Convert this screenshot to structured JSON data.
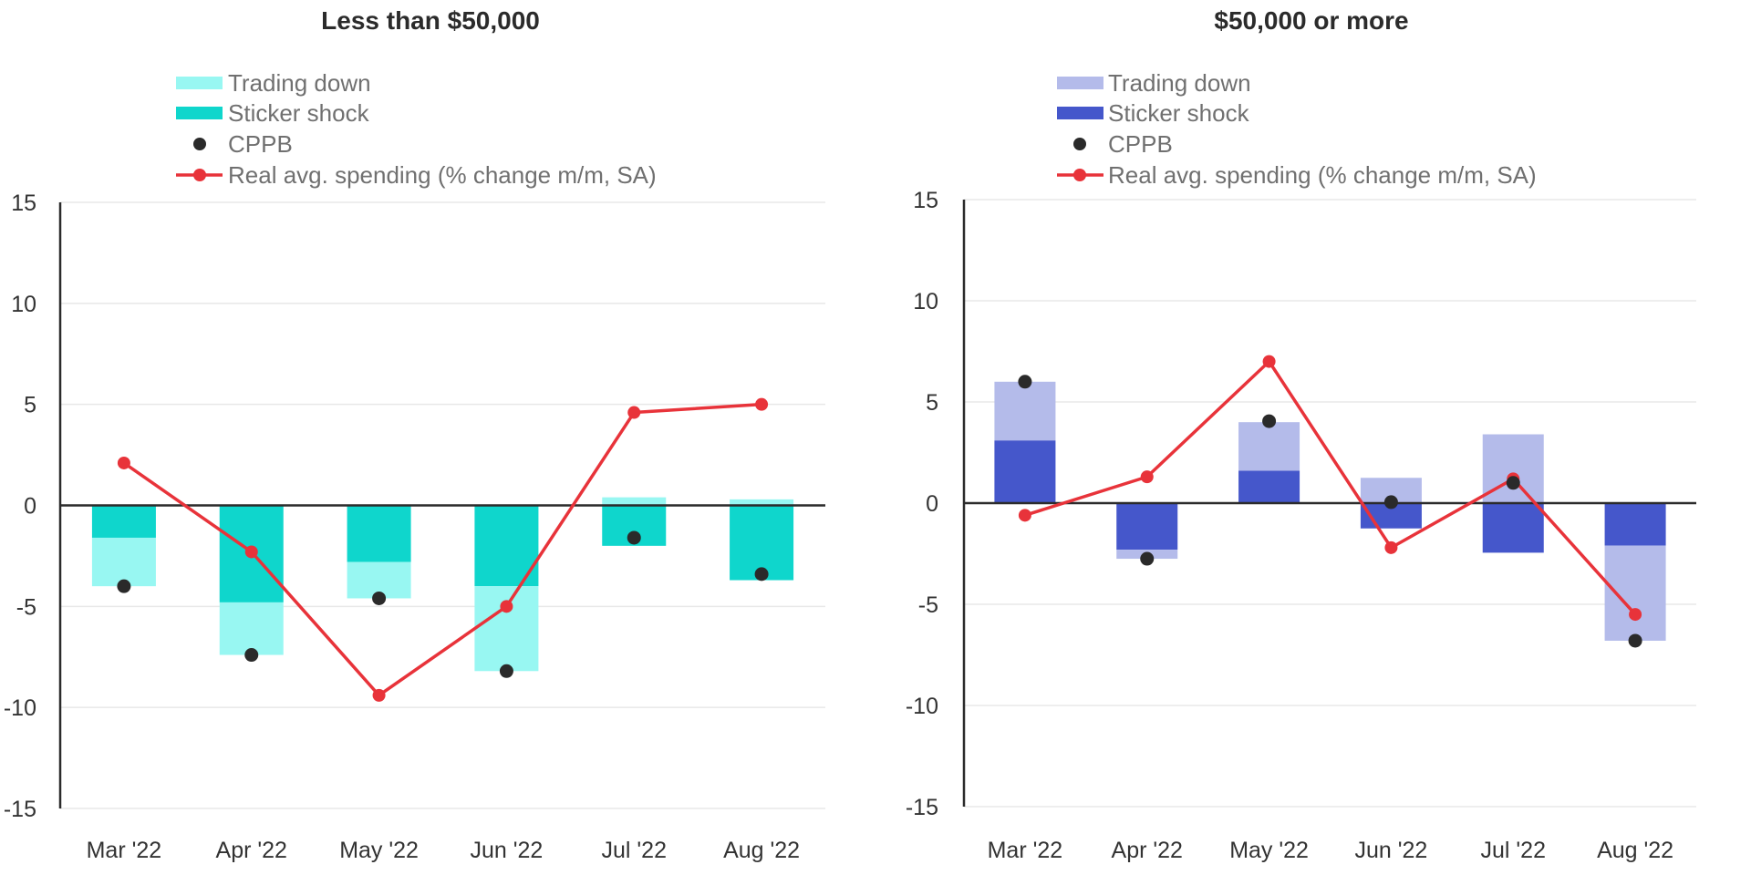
{
  "chart_data": [
    {
      "type": "bar",
      "title": "Less than $50,000",
      "xlabel": "",
      "ylabel": "",
      "ylim": [
        -15,
        15
      ],
      "yticks": [
        "15",
        "10",
        "5",
        "0",
        "-5",
        "-10",
        "-15"
      ],
      "ytick_values": [
        15,
        10,
        5,
        0,
        -5,
        -10,
        -15
      ],
      "grid": true,
      "legend_position": "top-center",
      "categories": [
        "Mar '22",
        "Apr '22",
        "May '22",
        "Jun '22",
        "Jul '22",
        "Aug '22"
      ],
      "colors": {
        "trading_down": "#98f7f2",
        "sticker_shock": "#0fd6cc",
        "cppb": "#2a2a2a",
        "real_spending": "#e8333a"
      },
      "legend": [
        "Trading down",
        "Sticker shock",
        "CPPB",
        "Real avg. spending (% change m/m, SA)"
      ],
      "series": [
        {
          "name": "Sticker shock",
          "kind": "stacked-bar",
          "values": [
            -1.6,
            -4.8,
            -2.8,
            -4.0,
            -2.0,
            -3.7
          ]
        },
        {
          "name": "Trading down",
          "kind": "stacked-bar",
          "values": [
            -2.4,
            -2.6,
            -1.8,
            -4.2,
            0.4,
            0.3
          ]
        },
        {
          "name": "CPPB",
          "kind": "scatter",
          "values": [
            -4.0,
            -7.4,
            -4.6,
            -8.2,
            -1.6,
            -3.4
          ]
        },
        {
          "name": "Real avg. spending (% change m/m, SA)",
          "kind": "line",
          "values": [
            2.1,
            -2.3,
            -9.4,
            -5.0,
            4.6,
            5.0
          ]
        }
      ]
    },
    {
      "type": "bar",
      "title": "$50,000 or more",
      "xlabel": "",
      "ylabel": "",
      "ylim": [
        -15,
        15
      ],
      "yticks": [
        "15",
        "10",
        "5",
        "0",
        "-5",
        "-10",
        "-15"
      ],
      "ytick_values": [
        15,
        10,
        5,
        0,
        -5,
        -10,
        -15
      ],
      "grid": true,
      "legend_position": "top-center",
      "categories": [
        "Mar '22",
        "Apr '22",
        "May '22",
        "Jun '22",
        "Jul '22",
        "Aug '22"
      ],
      "colors": {
        "trading_down": "#b4bbea",
        "sticker_shock": "#4557cb",
        "cppb": "#2a2a2a",
        "real_spending": "#e8333a"
      },
      "legend": [
        "Trading down",
        "Sticker shock",
        "CPPB",
        "Real avg. spending (% change m/m, SA)"
      ],
      "series": [
        {
          "name": "Sticker shock",
          "kind": "stacked-bar",
          "values": [
            3.1,
            -2.3,
            1.6,
            -1.25,
            -2.45,
            -2.1
          ]
        },
        {
          "name": "Trading down",
          "kind": "stacked-bar",
          "values": [
            2.9,
            -0.45,
            2.4,
            1.25,
            3.4,
            -4.7
          ]
        },
        {
          "name": "CPPB",
          "kind": "scatter",
          "values": [
            6.0,
            -2.75,
            4.05,
            0.05,
            1.0,
            -6.8
          ]
        },
        {
          "name": "Real avg. spending (% change m/m, SA)",
          "kind": "line",
          "values": [
            -0.6,
            1.3,
            7.0,
            -2.2,
            1.2,
            -5.5
          ]
        }
      ]
    }
  ]
}
